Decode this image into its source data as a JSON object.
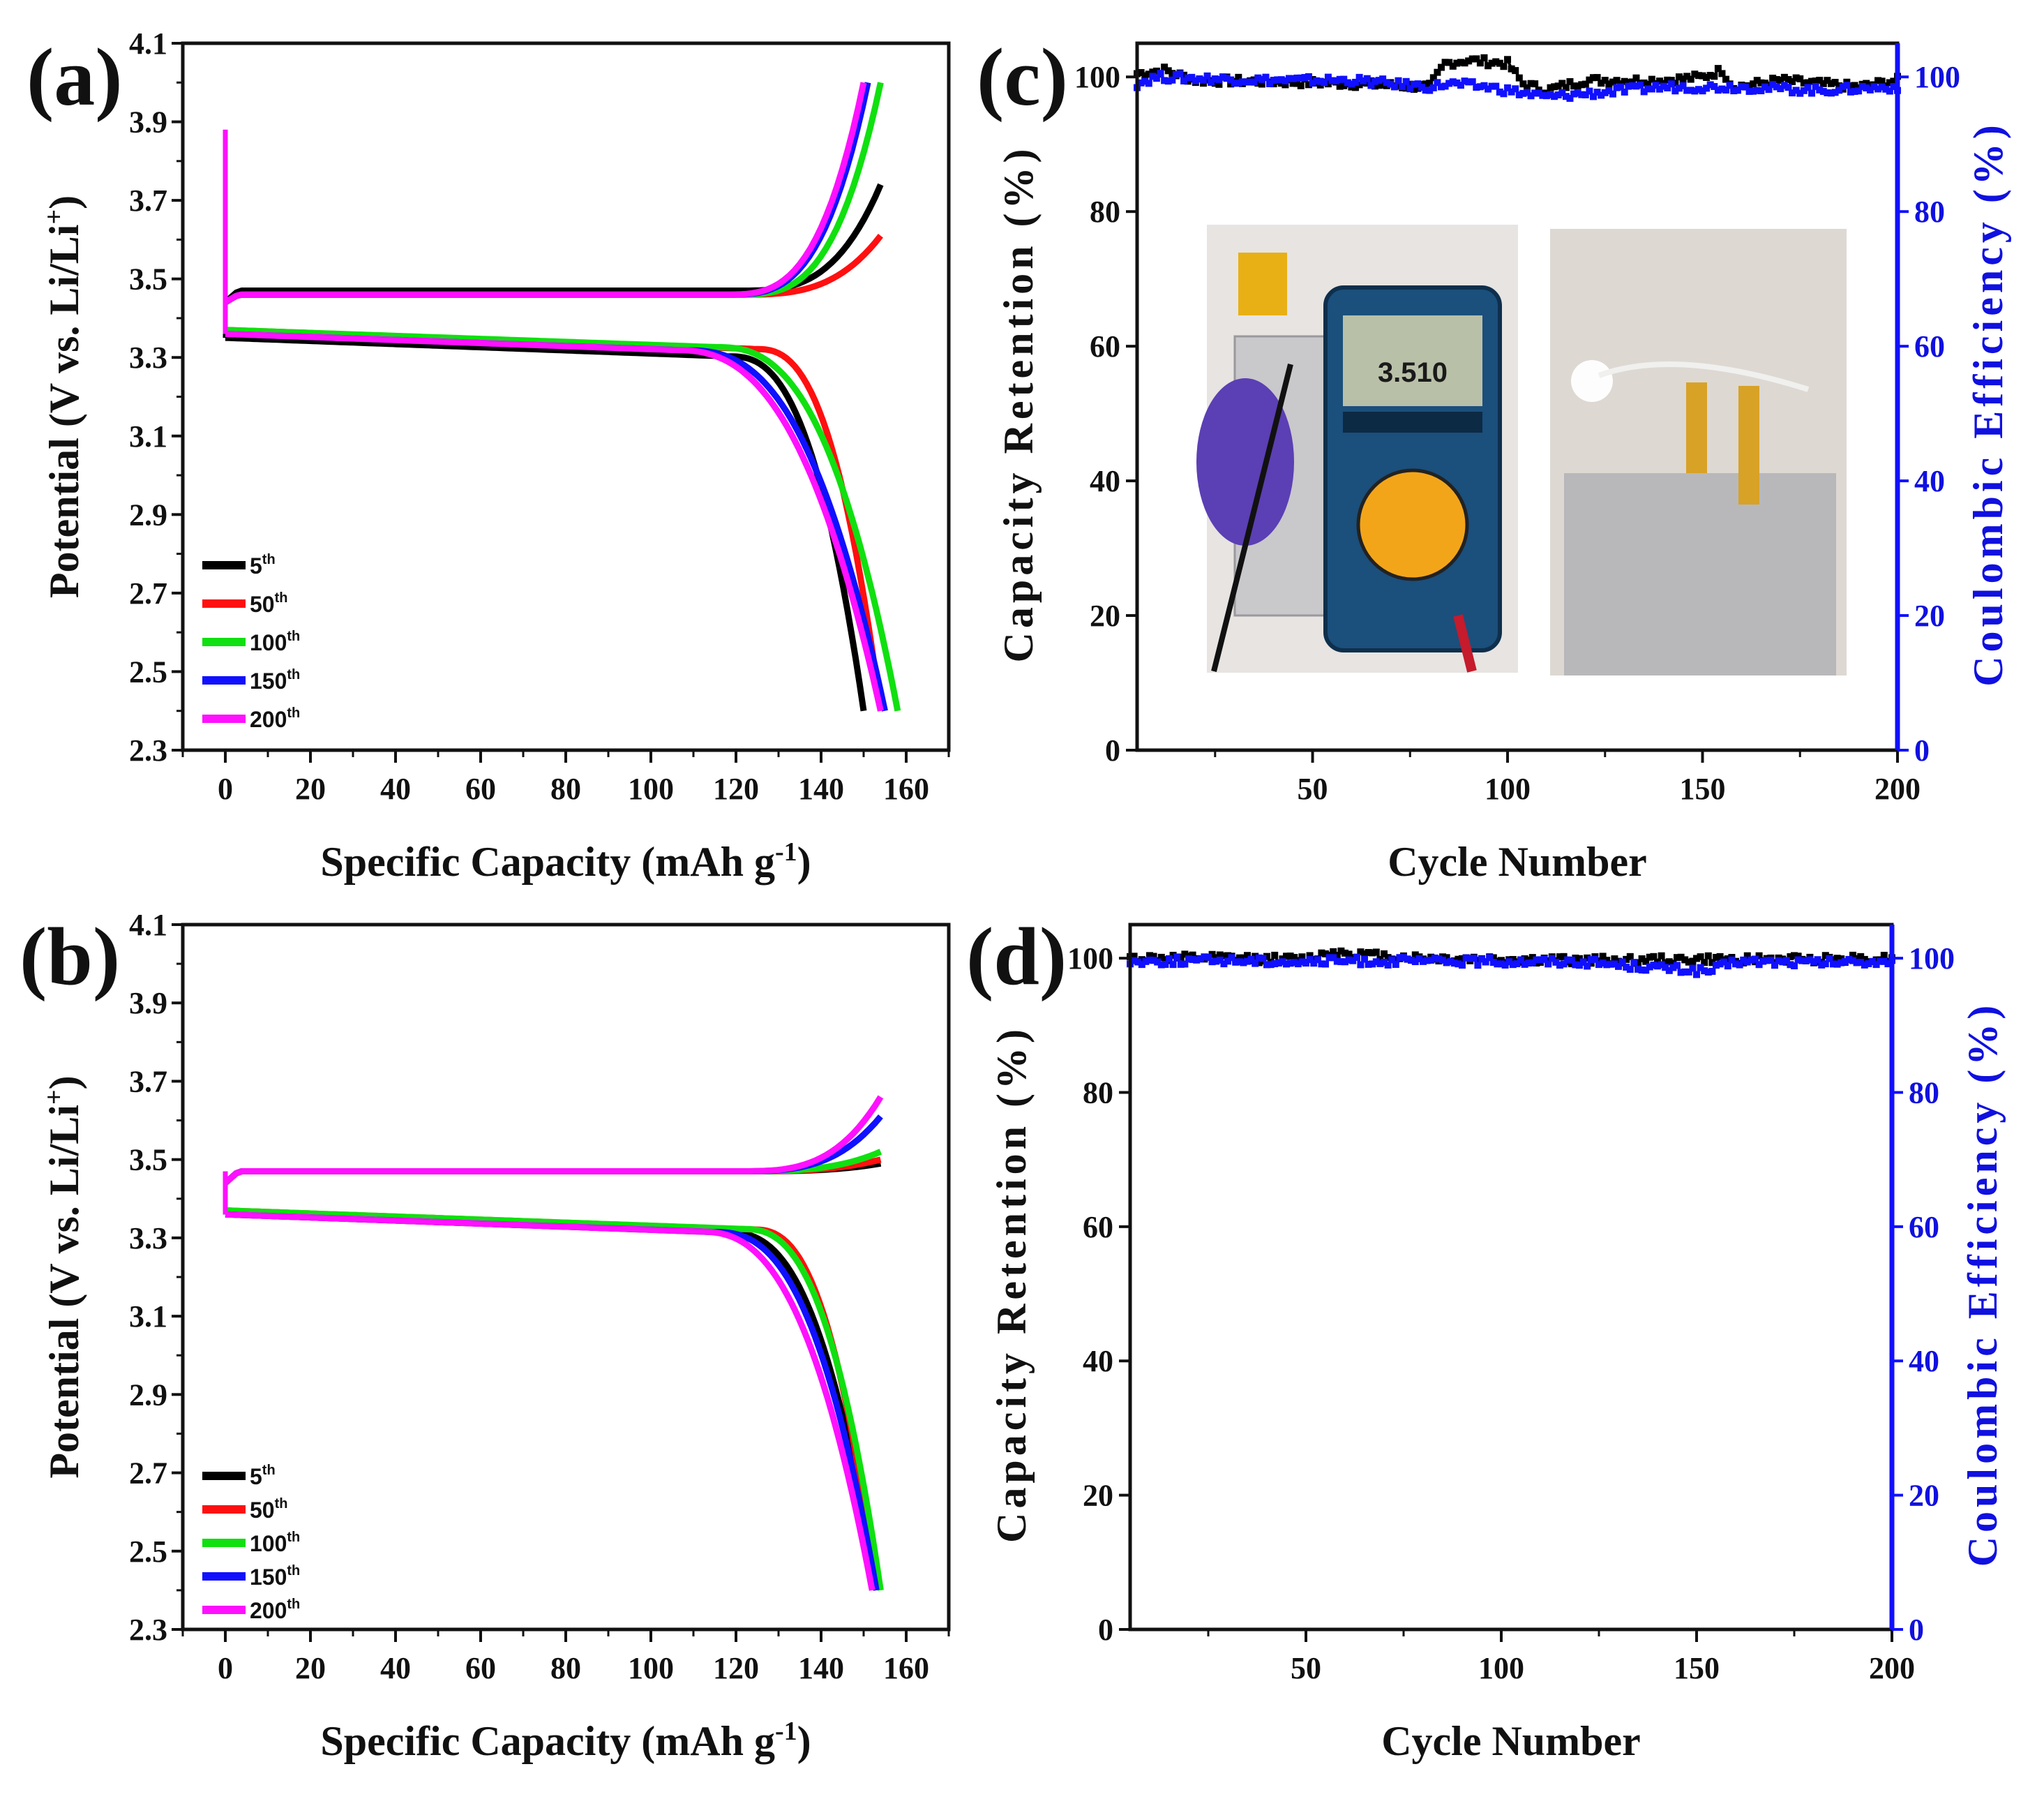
{
  "figure": {
    "panels": [
      "(a)",
      "(b)",
      "(c)",
      "(d)"
    ]
  },
  "chart_data": [
    {
      "id": "a",
      "type": "line",
      "panel_label": "(a)",
      "xlabel": "Specific Capacity (mAh g",
      "xlabel_sup": "-1",
      "xlabel_end": ")",
      "ylabel": "Potential (V vs. Li/Li",
      "ylabel_sup": "+",
      "ylabel_end": ")",
      "xlim": [
        -10,
        170
      ],
      "ylim": [
        2.3,
        4.1
      ],
      "xticks": [
        0,
        20,
        40,
        60,
        80,
        100,
        120,
        140,
        160
      ],
      "yticks": [
        2.3,
        2.5,
        2.7,
        2.9,
        3.1,
        3.3,
        3.5,
        3.7,
        3.9,
        4.1
      ],
      "legend_position": "bottom-left",
      "series": [
        {
          "name": "5",
          "sup": "th",
          "color": "#000000",
          "charge_end_q": 154,
          "charge_end_v": 3.74,
          "charge_v": 3.47,
          "discharge_end_q": 150,
          "discharge_v": 3.35,
          "knee": 0.85
        },
        {
          "name": "50",
          "sup": "th",
          "color": "#ff1010",
          "charge_end_q": 154,
          "charge_end_v": 3.61,
          "charge_v": 3.46,
          "discharge_end_q": 154,
          "discharge_v": 3.37,
          "knee": 0.9
        },
        {
          "name": "100",
          "sup": "th",
          "color": "#10e010",
          "charge_end_q": 154,
          "charge_end_v": 4.0,
          "charge_v": 3.46,
          "discharge_end_q": 158,
          "discharge_v": 3.37,
          "knee": 0.7
        },
        {
          "name": "150",
          "sup": "th",
          "color": "#1010ff",
          "charge_end_q": 151,
          "charge_end_v": 4.0,
          "charge_v": 3.46,
          "discharge_end_q": 155,
          "discharge_v": 3.36,
          "knee": 0.62
        },
        {
          "name": "200",
          "sup": "th",
          "color": "#ff10ff",
          "charge_end_q": 150,
          "charge_end_v": 4.0,
          "charge_v": 3.46,
          "discharge_end_q": 154,
          "discharge_v": 3.36,
          "knee": 0.58
        }
      ]
    },
    {
      "id": "b",
      "type": "line",
      "panel_label": "(b)",
      "xlabel": "Specific Capacity (mAh g",
      "xlabel_sup": "-1",
      "xlabel_end": ")",
      "ylabel": "Potential (V vs. Li/Li",
      "ylabel_sup": "+",
      "ylabel_end": ")",
      "xlim": [
        -10,
        170
      ],
      "ylim": [
        2.3,
        4.1
      ],
      "xticks": [
        0,
        20,
        40,
        60,
        80,
        100,
        120,
        140,
        160
      ],
      "yticks": [
        2.3,
        2.5,
        2.7,
        2.9,
        3.1,
        3.3,
        3.5,
        3.7,
        3.9,
        4.1
      ],
      "legend_position": "bottom-left",
      "series": [
        {
          "name": "5",
          "sup": "th",
          "color": "#000000",
          "charge_end_q": 154,
          "charge_end_v": 3.49,
          "charge_v": 3.47,
          "discharge_end_q": 153,
          "discharge_v": 3.36,
          "knee": 0.8
        },
        {
          "name": "50",
          "sup": "th",
          "color": "#ff1010",
          "charge_end_q": 154,
          "charge_end_v": 3.5,
          "charge_v": 3.47,
          "discharge_end_q": 153,
          "discharge_v": 3.37,
          "knee": 0.9
        },
        {
          "name": "100",
          "sup": "th",
          "color": "#10e010",
          "charge_end_q": 154,
          "charge_end_v": 3.52,
          "charge_v": 3.47,
          "discharge_end_q": 154,
          "discharge_v": 3.37,
          "knee": 0.85
        },
        {
          "name": "150",
          "sup": "th",
          "color": "#1010ff",
          "charge_end_q": 154,
          "charge_end_v": 3.61,
          "charge_v": 3.47,
          "discharge_end_q": 153,
          "discharge_v": 3.36,
          "knee": 0.75
        },
        {
          "name": "200",
          "sup": "th",
          "color": "#ff10ff",
          "charge_end_q": 154,
          "charge_end_v": 3.66,
          "charge_v": 3.47,
          "discharge_end_q": 152,
          "discharge_v": 3.36,
          "knee": 0.7
        }
      ]
    },
    {
      "id": "c",
      "type": "scatter",
      "panel_label": "(c)",
      "xlabel": "Cycle Number",
      "ylabel": "Capacity Retention (%)",
      "ylabel_right": "Coulombic Efficiency (%)",
      "xlim": [
        5,
        200
      ],
      "ylim": [
        0,
        105
      ],
      "xticks": [
        50,
        100,
        150,
        200
      ],
      "yticks": [
        0,
        20,
        40,
        60,
        80,
        100
      ],
      "yticks_right": [
        0,
        20,
        40,
        60,
        80,
        100
      ],
      "series": [
        {
          "name": "Capacity Retention",
          "color": "#000000",
          "segments": [
            [
              5,
              100.5
            ],
            [
              12,
              101
            ],
            [
              20,
              99.5
            ],
            [
              40,
              99.3
            ],
            [
              60,
              99
            ],
            [
              80,
              98.5
            ],
            [
              84,
              102
            ],
            [
              90,
              102.5
            ],
            [
              100,
              102
            ],
            [
              104,
              99
            ],
            [
              110,
              98
            ],
            [
              120,
              99.5
            ],
            [
              140,
              99.5
            ],
            [
              150,
              100
            ],
            [
              155,
              101
            ],
            [
              158,
              98.5
            ],
            [
              170,
              99.5
            ],
            [
              180,
              99
            ],
            [
              190,
              98.5
            ],
            [
              200,
              99.5
            ]
          ]
        },
        {
          "name": "Coulombic Efficiency",
          "color": "#1010ff",
          "segments": [
            [
              5,
              99
            ],
            [
              10,
              100
            ],
            [
              20,
              99.8
            ],
            [
              40,
              99.5
            ],
            [
              60,
              99.5
            ],
            [
              80,
              98.5
            ],
            [
              85,
              99
            ],
            [
              95,
              98.5
            ],
            [
              100,
              98
            ],
            [
              105,
              97.5
            ],
            [
              110,
              97
            ],
            [
              120,
              97.5
            ],
            [
              140,
              98.5
            ],
            [
              160,
              98.5
            ],
            [
              180,
              98
            ],
            [
              200,
              98.5
            ]
          ]
        }
      ],
      "inset_photos": [
        {
          "name": "multimeter-photo",
          "display": "3.510"
        },
        {
          "name": "led-pouch-cell-photo"
        }
      ]
    },
    {
      "id": "d",
      "type": "scatter",
      "panel_label": "(d)",
      "xlabel": "Cycle Number",
      "ylabel": "Capacity Retention (%)",
      "ylabel_right": "Coulombic Efficiency (%)",
      "xlim": [
        5,
        200
      ],
      "ylim": [
        0,
        105
      ],
      "xticks": [
        50,
        100,
        150,
        200
      ],
      "yticks": [
        0,
        20,
        40,
        60,
        80,
        100
      ],
      "yticks_right": [
        0,
        20,
        40,
        60,
        80,
        100
      ],
      "series": [
        {
          "name": "Capacity Retention",
          "color": "#000000",
          "segments": [
            [
              5,
              100
            ],
            [
              30,
              100
            ],
            [
              50,
              99.8
            ],
            [
              57,
              101
            ],
            [
              65,
              100.5
            ],
            [
              80,
              100
            ],
            [
              100,
              99.8
            ],
            [
              120,
              99.7
            ],
            [
              150,
              99.8
            ],
            [
              170,
              99.8
            ],
            [
              190,
              100
            ],
            [
              200,
              100
            ]
          ]
        },
        {
          "name": "Coulombic Efficiency",
          "color": "#1010ff",
          "segments": [
            [
              5,
              99.5
            ],
            [
              30,
              99.7
            ],
            [
              50,
              99.4
            ],
            [
              60,
              99.6
            ],
            [
              80,
              99.5
            ],
            [
              100,
              99.5
            ],
            [
              120,
              99.5
            ],
            [
              153,
              98
            ],
            [
              160,
              99.5
            ],
            [
              180,
              99.3
            ],
            [
              200,
              99.5
            ]
          ]
        }
      ]
    }
  ]
}
